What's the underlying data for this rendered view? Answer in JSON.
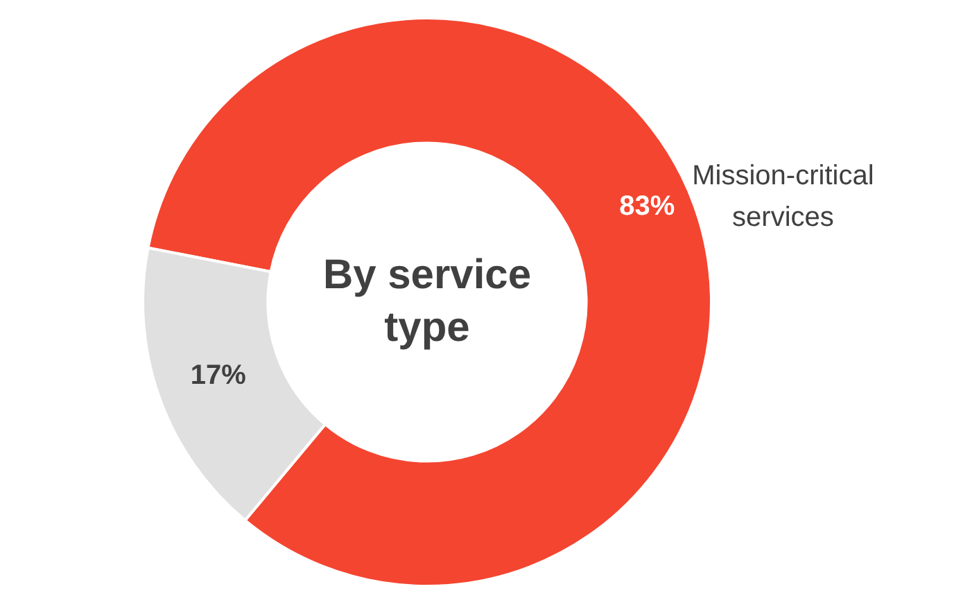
{
  "chart_data": {
    "type": "donut",
    "title": "By service type",
    "categories": [
      "Mission-critical services",
      null
    ],
    "values": [
      83,
      17
    ],
    "colors": [
      "#f44530",
      "#e0e0e0"
    ],
    "value_labels": [
      "83%",
      "17%"
    ],
    "legend": false
  }
}
